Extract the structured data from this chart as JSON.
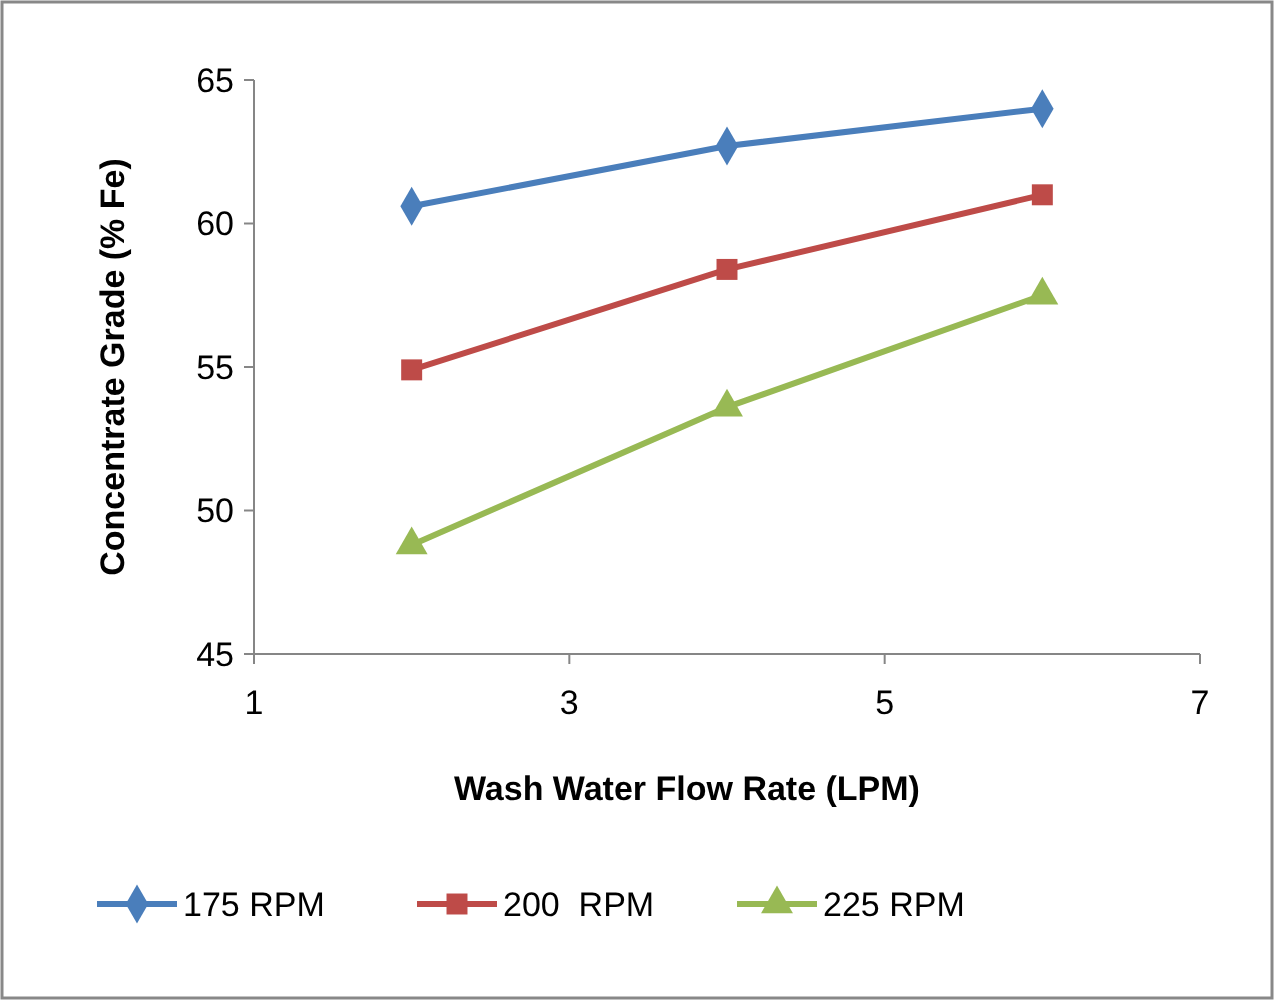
{
  "chart_data": {
    "type": "line",
    "xlabel": "Wash Water Flow Rate (LPM)",
    "ylabel": "Concentrate Grade (% Fe)",
    "x": [
      2,
      4,
      6
    ],
    "xlim": [
      1,
      7
    ],
    "xticks": [
      1,
      3,
      5,
      7
    ],
    "ylim": [
      45,
      65
    ],
    "yticks": [
      45,
      50,
      55,
      60,
      65
    ],
    "grid": false,
    "legend": "bottom",
    "line_style": "solid",
    "series": [
      {
        "name": "175 RPM",
        "color": "#4a7ebb",
        "marker": "diamond",
        "values": [
          60.6,
          62.7,
          64.0
        ]
      },
      {
        "name": "200  RPM",
        "color": "#be4b48",
        "marker": "square",
        "values": [
          54.9,
          58.4,
          61.0
        ]
      },
      {
        "name": "225 RPM",
        "color": "#98b954",
        "marker": "triangle",
        "values": [
          48.8,
          53.6,
          57.5
        ]
      }
    ]
  }
}
